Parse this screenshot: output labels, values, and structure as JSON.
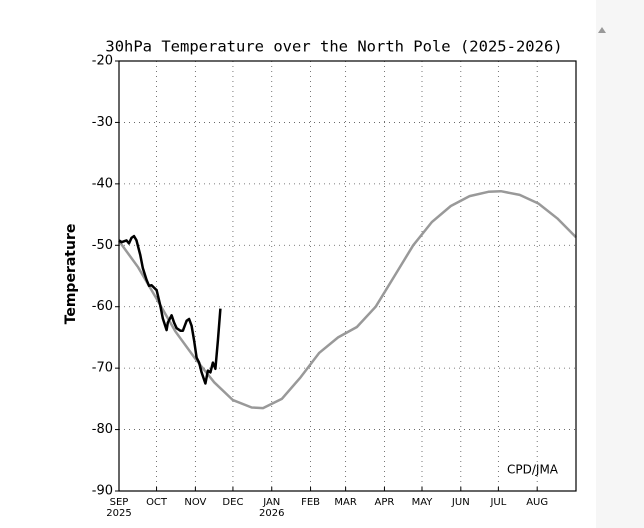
{
  "chart_data": {
    "type": "line",
    "title": "30hPa Temperature over the North Pole (2025-2026)",
    "ylabel": "Temperature",
    "annotation": "CPD/JMA",
    "xlim": [
      0,
      365
    ],
    "ylim": [
      -90,
      -20
    ],
    "yticks": [
      -90,
      -80,
      -70,
      -60,
      -50,
      -40,
      -30,
      -20
    ],
    "xticks": [
      {
        "value": 0,
        "label": "SEP"
      },
      {
        "value": 30,
        "label": "OCT"
      },
      {
        "value": 61,
        "label": "NOV"
      },
      {
        "value": 91,
        "label": "DEC"
      },
      {
        "value": 122,
        "label": "JAN"
      },
      {
        "value": 153,
        "label": "FEB"
      },
      {
        "value": 181,
        "label": "MAR"
      },
      {
        "value": 212,
        "label": "APR"
      },
      {
        "value": 242,
        "label": "MAY"
      },
      {
        "value": 273,
        "label": "JUN"
      },
      {
        "value": 303,
        "label": "JUL"
      },
      {
        "value": 334,
        "label": "AUG"
      }
    ],
    "xtick_years": [
      {
        "value": 0,
        "label": "2025"
      },
      {
        "value": 122,
        "label": "2026"
      }
    ],
    "grid": true,
    "series": [
      {
        "color": "#999999",
        "x": [
          0,
          15,
          30,
          45,
          61,
          76,
          91,
          106,
          115,
          130,
          145,
          160,
          175,
          190,
          205,
          220,
          235,
          250,
          265,
          280,
          295,
          305,
          320,
          335,
          350,
          365
        ],
        "values": [
          -49.3,
          -53.5,
          -58.7,
          -64,
          -68.5,
          -72.3,
          -75.2,
          -76.4,
          -76.5,
          -75,
          -71.5,
          -67.5,
          -65,
          -63.3,
          -60,
          -55,
          -50,
          -46.2,
          -43.6,
          -42,
          -41.3,
          -41.2,
          -41.8,
          -43.2,
          -45.6,
          -48.7
        ]
      },
      {
        "color": "#000000",
        "x": [
          0,
          2,
          6,
          8,
          10,
          12,
          14,
          17,
          19,
          22,
          24,
          26,
          29,
          30,
          33,
          35,
          38,
          39,
          42,
          44,
          46,
          49,
          51,
          54,
          56,
          58,
          60,
          62,
          64,
          66,
          69,
          71,
          73,
          75,
          77,
          79,
          81
        ],
        "values": [
          -49.2,
          -49.5,
          -49.2,
          -49.7,
          -48.8,
          -48.5,
          -49.2,
          -51.6,
          -53.7,
          -55.6,
          -56.6,
          -56.5,
          -57.1,
          -57.3,
          -59.8,
          -61.9,
          -63.8,
          -62.6,
          -61.4,
          -62.6,
          -63.5,
          -63.9,
          -63.9,
          -62.3,
          -62,
          -63.1,
          -65.5,
          -68.3,
          -69.1,
          -70.7,
          -72.5,
          -70.4,
          -70.7,
          -69.1,
          -70.1,
          -65.5,
          -60.3
        ]
      }
    ]
  }
}
